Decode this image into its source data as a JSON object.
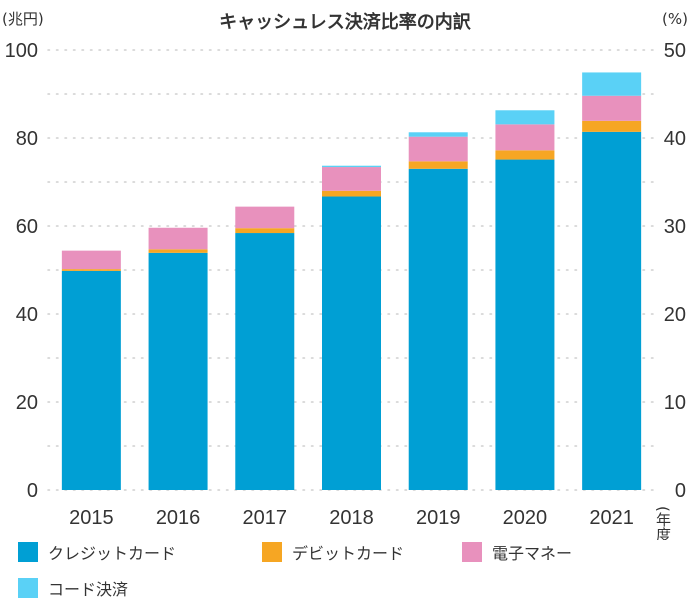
{
  "chart_data": {
    "type": "bar",
    "stacked": true,
    "title": "キャッシュレス決済比率の内訳",
    "left_unit": "(兆円)",
    "right_unit": "(%)",
    "x_unit": "(年度)",
    "categories": [
      "2015",
      "2016",
      "2017",
      "2018",
      "2019",
      "2020",
      "2021"
    ],
    "series": [
      {
        "name": "クレジットカード",
        "color": "#009fd4",
        "values": [
          49.8,
          53.9,
          58.4,
          66.7,
          73.0,
          75.1,
          81.4
        ]
      },
      {
        "name": "デビットカード",
        "color": "#f6a623",
        "values": [
          0.4,
          0.8,
          1.1,
          1.3,
          1.7,
          2.1,
          2.5
        ]
      },
      {
        "name": "電子マネー",
        "color": "#e891bd",
        "values": [
          4.2,
          4.9,
          4.9,
          5.4,
          5.6,
          5.9,
          5.7
        ]
      },
      {
        "name": "コード決済",
        "color": "#5ad1f6",
        "values": [
          0,
          0,
          0,
          0.3,
          1.0,
          3.2,
          5.3
        ]
      }
    ],
    "ylim": [
      0,
      100
    ],
    "yticks": [
      "0",
      "20",
      "40",
      "60",
      "80",
      "100"
    ],
    "y2lim": [
      0,
      50
    ],
    "y2ticks": [
      "0",
      "10",
      "20",
      "30",
      "40",
      "50"
    ],
    "grid": "dotted",
    "legend_position": "bottom"
  }
}
